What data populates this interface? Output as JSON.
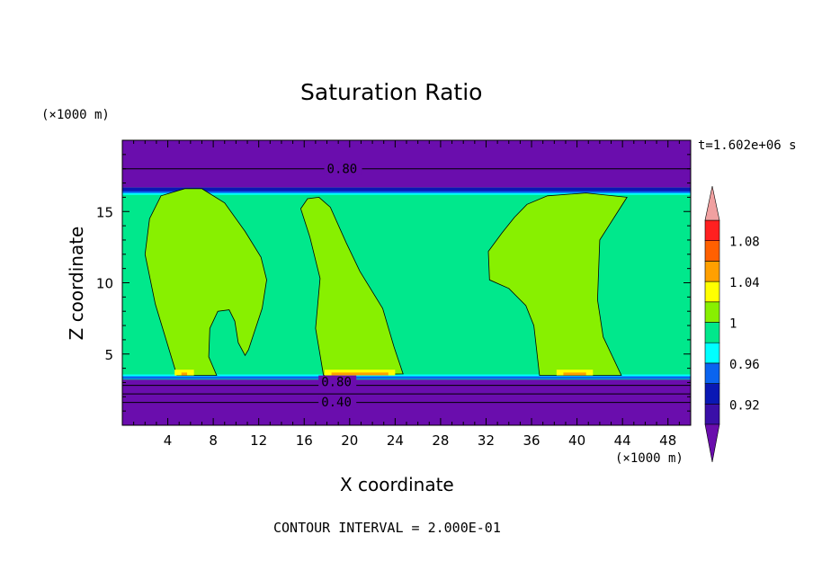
{
  "chart_data": {
    "type": "filled-contour",
    "title": "Saturation Ratio",
    "xlabel": "X coordinate",
    "ylabel": "Z coordinate",
    "x_unit": "(×1000 m)",
    "y_unit": "(×1000 m)",
    "time_label": "t=1.602e+06 s",
    "footer": "CONTOUR INTERVAL = 2.000E-01",
    "xlim": [
      0,
      50
    ],
    "ylim": [
      0,
      20
    ],
    "x_ticks": [
      4,
      8,
      12,
      16,
      20,
      24,
      28,
      32,
      36,
      40,
      44,
      48
    ],
    "y_ticks": [
      5,
      10,
      15
    ],
    "contour_labels": [
      "0.80",
      "0.80",
      "0.40"
    ],
    "colorbar": {
      "levels": [
        0.92,
        0.94,
        0.96,
        0.98,
        1.0,
        1.02,
        1.04,
        1.06,
        1.08,
        1.1
      ],
      "tick_labels": [
        "0.92",
        "0.96",
        "1",
        "1.04",
        "1.08"
      ],
      "colors": [
        "#6a0dad",
        "#3a0fa8",
        "#0a18b4",
        "#0a64f0",
        "#00ffff",
        "#00e88c",
        "#88f000",
        "#ffff00",
        "#ffa000",
        "#ff6000",
        "#ff2020",
        "#f0a0a0"
      ]
    },
    "regions": {
      "top_dry_layer_z": [
        16.8,
        20
      ],
      "bottom_dry_layer_z": [
        0,
        3.2
      ],
      "near_saturation_band_z": [
        3.5,
        16.8
      ],
      "supersaturated_plumes": [
        {
          "x_center": 9,
          "z_top": 16.5
        },
        {
          "x_center": 21,
          "z_top": 16.0
        },
        {
          "x_center": 41,
          "z_top": 16.3
        }
      ]
    }
  }
}
